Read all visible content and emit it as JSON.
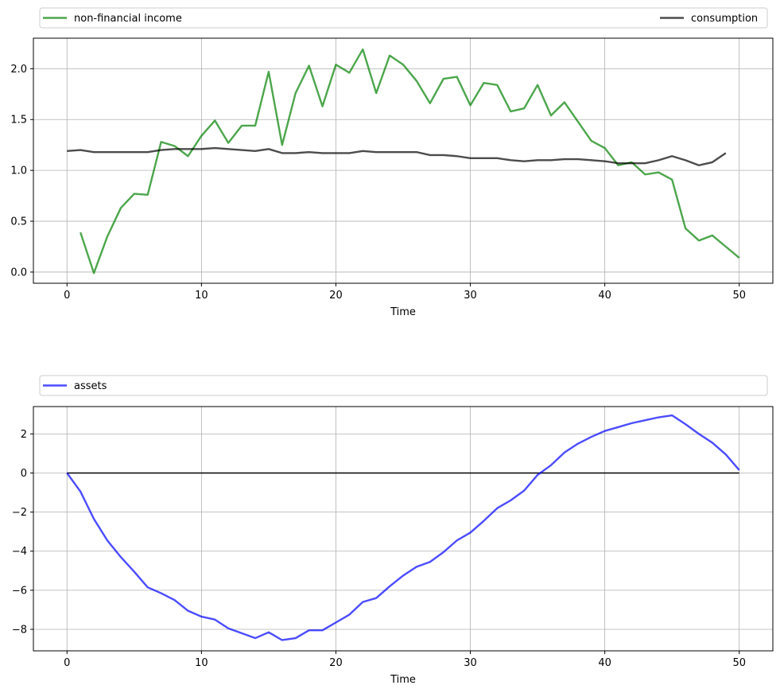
{
  "chart_data": [
    {
      "type": "line",
      "xlabel": "Time",
      "ylabel": "",
      "xlim": [
        -2.5,
        52.5
      ],
      "ylim": [
        -0.11,
        2.3
      ],
      "xticks": [
        0,
        10,
        20,
        30,
        40,
        50
      ],
      "yticks": [
        0.0,
        0.5,
        1.0,
        1.5,
        2.0
      ],
      "xtick_labels": [
        "0",
        "10",
        "20",
        "30",
        "40",
        "50"
      ],
      "ytick_labels": [
        "0.0",
        "0.5",
        "1.0",
        "1.5",
        "2.0"
      ],
      "grid": true,
      "legend": "above",
      "series": [
        {
          "name": "non-financial income",
          "color": "#008000",
          "x": [
            1,
            2,
            3,
            4,
            5,
            6,
            7,
            8,
            9,
            10,
            11,
            12,
            13,
            14,
            15,
            16,
            17,
            18,
            19,
            20,
            21,
            22,
            23,
            24,
            25,
            26,
            27,
            28,
            29,
            30,
            31,
            32,
            33,
            34,
            35,
            36,
            37,
            38,
            39,
            40,
            41,
            42,
            43,
            44,
            45,
            46,
            47,
            48,
            49,
            50
          ],
          "values": [
            0.39,
            -0.01,
            0.35,
            0.63,
            0.77,
            0.76,
            1.28,
            1.24,
            1.14,
            1.34,
            1.49,
            1.27,
            1.44,
            1.44,
            1.97,
            1.25,
            1.76,
            2.03,
            1.63,
            2.04,
            1.96,
            2.19,
            1.76,
            2.13,
            2.04,
            1.88,
            1.66,
            1.9,
            1.92,
            1.64,
            1.86,
            1.84,
            1.58,
            1.61,
            1.84,
            1.54,
            1.67,
            1.48,
            1.29,
            1.22,
            1.05,
            1.08,
            0.96,
            0.98,
            0.91,
            0.43,
            0.31,
            0.36,
            0.25,
            0.14
          ]
        },
        {
          "name": "consumption",
          "color": "#000000",
          "x": [
            0,
            1,
            2,
            3,
            4,
            5,
            6,
            7,
            8,
            9,
            10,
            11,
            12,
            13,
            14,
            15,
            16,
            17,
            18,
            19,
            20,
            21,
            22,
            23,
            24,
            25,
            26,
            27,
            28,
            29,
            30,
            31,
            32,
            33,
            34,
            35,
            36,
            37,
            38,
            39,
            40,
            41,
            42,
            43,
            44,
            45,
            46,
            47,
            48,
            49
          ],
          "values": [
            1.19,
            1.2,
            1.18,
            1.18,
            1.18,
            1.18,
            1.18,
            1.2,
            1.21,
            1.21,
            1.21,
            1.22,
            1.21,
            1.2,
            1.19,
            1.21,
            1.17,
            1.17,
            1.18,
            1.17,
            1.17,
            1.17,
            1.19,
            1.18,
            1.18,
            1.18,
            1.18,
            1.15,
            1.15,
            1.14,
            1.12,
            1.12,
            1.12,
            1.1,
            1.09,
            1.1,
            1.1,
            1.11,
            1.11,
            1.1,
            1.09,
            1.07,
            1.07,
            1.07,
            1.1,
            1.14,
            1.1,
            1.05,
            1.08,
            1.17
          ]
        }
      ]
    },
    {
      "type": "line",
      "xlabel": "Time",
      "ylabel": "",
      "xlim": [
        -2.5,
        52.5
      ],
      "ylim": [
        -9.1,
        3.4
      ],
      "xticks": [
        0,
        10,
        20,
        30,
        40,
        50
      ],
      "yticks": [
        -8,
        -6,
        -4,
        -2,
        0,
        2
      ],
      "xtick_labels": [
        "0",
        "10",
        "20",
        "30",
        "40",
        "50"
      ],
      "ytick_labels": [
        "−8",
        "−6",
        "−4",
        "−2",
        "0",
        "2"
      ],
      "grid": true,
      "legend": "above",
      "hline": {
        "y": 0,
        "x_from": 0,
        "x_to": 50,
        "color": "#000000"
      },
      "series": [
        {
          "name": "assets",
          "color": "#0000ff",
          "x": [
            0,
            1,
            2,
            3,
            4,
            5,
            6,
            7,
            8,
            9,
            10,
            11,
            12,
            13,
            14,
            15,
            16,
            17,
            18,
            19,
            20,
            21,
            22,
            23,
            24,
            25,
            26,
            27,
            28,
            29,
            30,
            31,
            32,
            33,
            34,
            35,
            36,
            37,
            38,
            39,
            40,
            41,
            42,
            43,
            44,
            45,
            46,
            47,
            48,
            49,
            50
          ],
          "values": [
            0.0,
            -0.95,
            -2.35,
            -3.45,
            -4.3,
            -5.05,
            -5.85,
            -6.15,
            -6.5,
            -7.05,
            -7.35,
            -7.5,
            -7.95,
            -8.2,
            -8.45,
            -8.15,
            -8.55,
            -8.45,
            -8.05,
            -8.05,
            -7.65,
            -7.25,
            -6.6,
            -6.4,
            -5.8,
            -5.25,
            -4.8,
            -4.55,
            -4.05,
            -3.45,
            -3.05,
            -2.45,
            -1.8,
            -1.4,
            -0.9,
            -0.1,
            0.4,
            1.05,
            1.5,
            1.85,
            2.15,
            2.35,
            2.55,
            2.7,
            2.85,
            2.95,
            2.5,
            2.0,
            1.55,
            0.95,
            0.15
          ]
        }
      ]
    }
  ]
}
